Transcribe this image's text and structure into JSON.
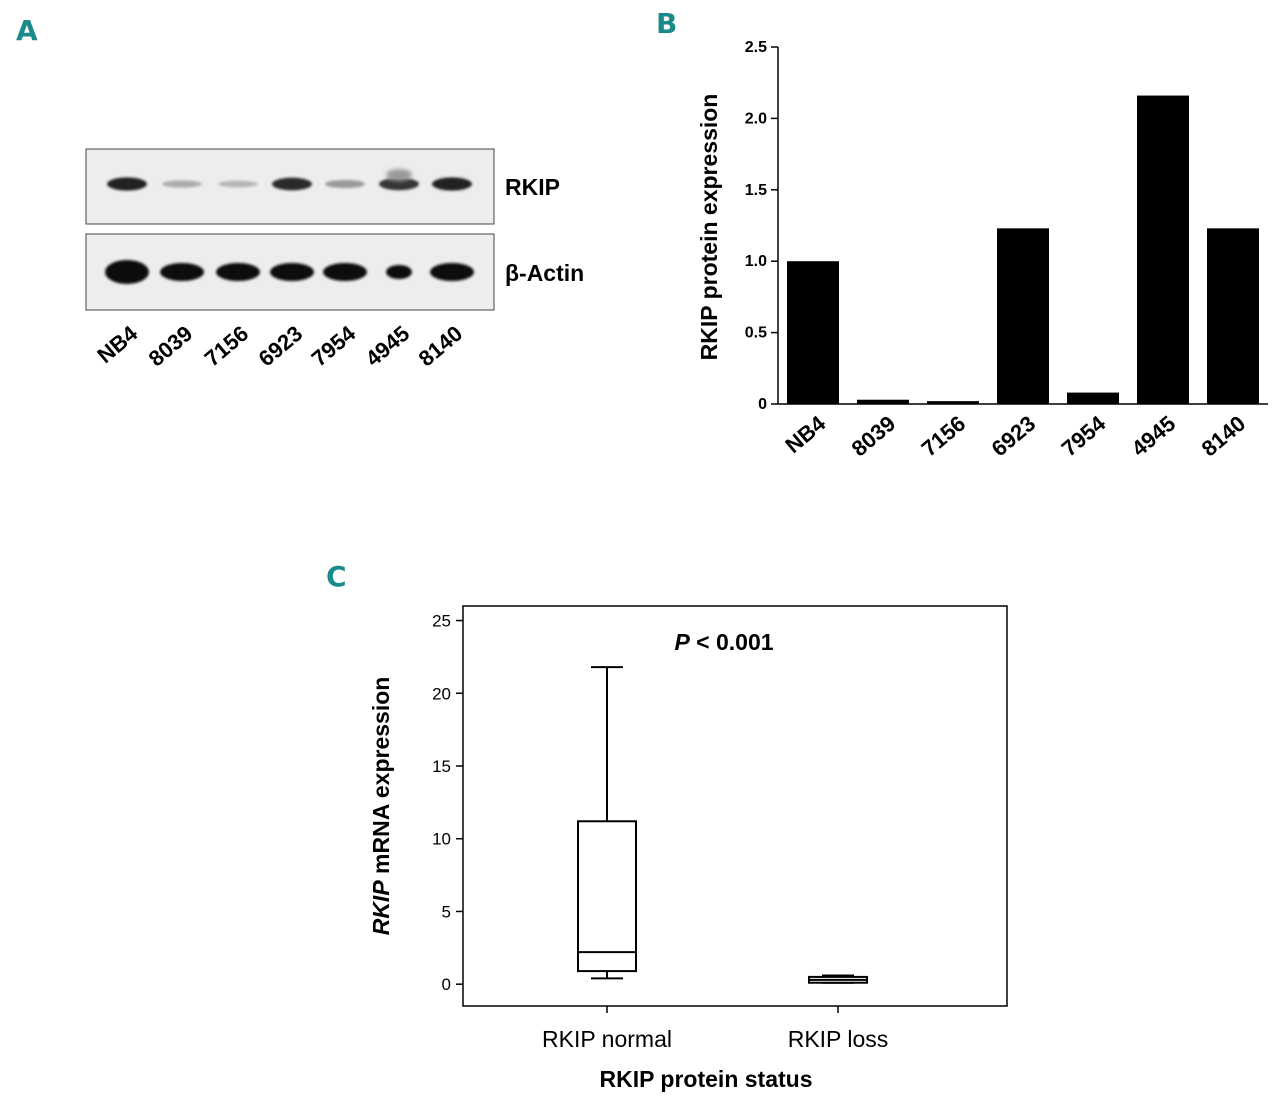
{
  "panels": {
    "a": "A",
    "b": "B",
    "c": "C"
  },
  "blot": {
    "band_labels": [
      "RKIP",
      "β-Actin"
    ],
    "lanes": [
      "NB4",
      "8039",
      "7156",
      "6923",
      "7954",
      "4945",
      "8140"
    ],
    "rkip_intensity": [
      0.9,
      0.15,
      0.1,
      0.85,
      0.25,
      0.8,
      0.9
    ]
  },
  "chart_data": [
    {
      "type": "bar",
      "title": "",
      "categories": [
        "NB4",
        "8039",
        "7156",
        "6923",
        "7954",
        "4945",
        "8140"
      ],
      "values": [
        1.0,
        0.03,
        0.02,
        1.23,
        0.08,
        2.16,
        1.23
      ],
      "xlabel": "",
      "ylabel": "RKIP protein expression",
      "ylim": [
        0,
        2.5
      ],
      "yticks": [
        "0",
        "0.5",
        "1.0",
        "1.5",
        "2.0",
        "2.5"
      ],
      "ytick_values": [
        0,
        0.5,
        1.0,
        1.5,
        2.0,
        2.5
      ],
      "bar_color": "#000000"
    },
    {
      "type": "box",
      "title": "",
      "annotation_p": "P",
      "annotation_rest": " < 0.001",
      "categories": [
        "RKIP normal",
        "RKIP loss"
      ],
      "boxes": [
        {
          "whisker_low": 0.4,
          "q1": 0.9,
          "median": 2.2,
          "q3": 11.2,
          "whisker_high": 21.8
        },
        {
          "whisker_low": 0.1,
          "q1": 0.1,
          "median": 0.3,
          "q3": 0.5,
          "whisker_high": 0.6
        }
      ],
      "xlabel": "RKIP protein status",
      "ylabel_italic": "RKIP",
      "ylabel_rest": " mRNA expression",
      "ylim": [
        -1.5,
        26
      ],
      "yticks": [
        "0",
        "5",
        "10",
        "15",
        "20",
        "25"
      ],
      "ytick_values": [
        0,
        5,
        10,
        15,
        20,
        25
      ]
    }
  ]
}
